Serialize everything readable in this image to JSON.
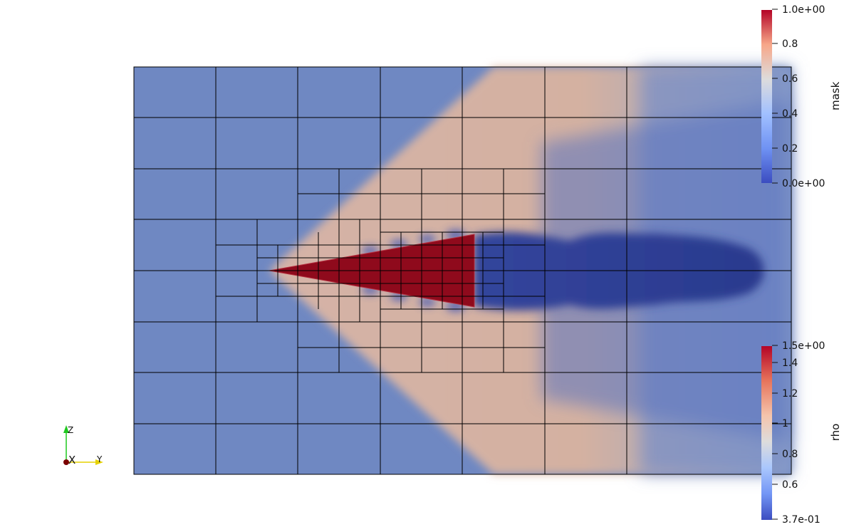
{
  "viewer": {
    "background": "#ffffff",
    "mesh_color": "#000000"
  },
  "colorbar_mask": {
    "title": "mask",
    "ticks": [
      "1.0e+00",
      "0.8",
      "0.6",
      "0.4",
      "0.2",
      "0.0e+00"
    ],
    "range": [
      0.0,
      1.0
    ],
    "colors": [
      "#b40426",
      "#f7a789",
      "#dddcdc",
      "#a1c0ff",
      "#6f92f3",
      "#3b4cc0"
    ]
  },
  "colorbar_rho": {
    "title": "rho",
    "ticks": [
      "1.5e+00",
      "1.4",
      "1.2",
      "1",
      "0.8",
      "0.6",
      "3.7e-01"
    ],
    "range": [
      0.37,
      1.5
    ],
    "colors": [
      "#b40426",
      "#e7745b",
      "#f5c4ac",
      "#dddcdc",
      "#aac7fd",
      "#7396f5",
      "#3b4cc0"
    ]
  },
  "orientation_axes": {
    "z_label": "Z",
    "x_label": "X",
    "y_label": "Y",
    "z_color": "#1ec81e",
    "y_color": "#e6d200",
    "x_color": "#7a0000"
  },
  "field": {
    "freestream_color": "#6f88c2",
    "shock_color": "#d9b8a8",
    "body_color": "#8f0a1c",
    "wake_color": "#2d3e96"
  }
}
